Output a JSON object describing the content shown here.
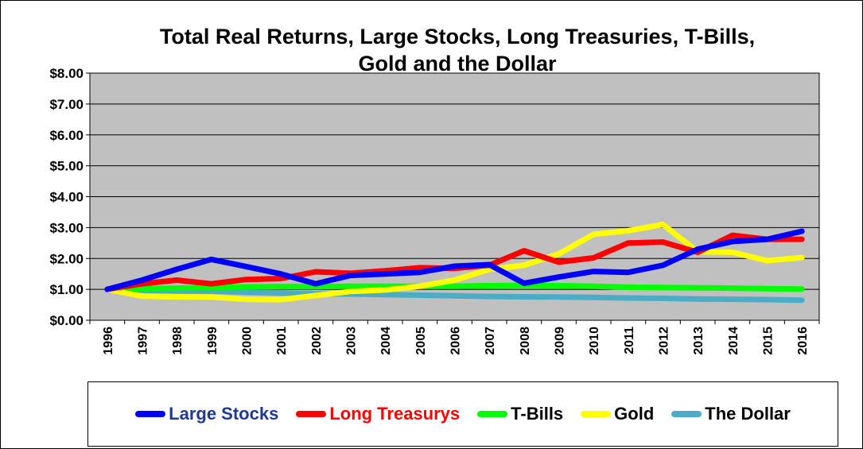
{
  "chart_data": {
    "type": "line",
    "title_lines": [
      "Total Real Returns, Large Stocks, Long Treasuries, T-Bills,",
      "Gold and the Dollar"
    ],
    "xlabel": "",
    "ylabel": "",
    "ylim": [
      0,
      8
    ],
    "yticks": [
      "$0.00",
      "$1.00",
      "$2.00",
      "$3.00",
      "$4.00",
      "$5.00",
      "$6.00",
      "$7.00",
      "$8.00"
    ],
    "grid": "horizontal",
    "legend_position": "bottom",
    "plot_background": "#c0c0c0",
    "categories": [
      "1996",
      "1997",
      "1998",
      "1999",
      "2000",
      "2001",
      "2002",
      "2003",
      "2004",
      "2005",
      "2006",
      "2007",
      "2008",
      "2009",
      "2010",
      "2011",
      "2012",
      "2013",
      "2014",
      "2015",
      "2016"
    ],
    "series": [
      {
        "name": "Large Stocks",
        "color": "#0000ff",
        "label_color": "#1f3a93",
        "values": [
          1.0,
          1.3,
          1.65,
          1.97,
          1.74,
          1.5,
          1.18,
          1.45,
          1.5,
          1.55,
          1.75,
          1.8,
          1.2,
          1.4,
          1.58,
          1.55,
          1.78,
          2.3,
          2.55,
          2.62,
          2.88
        ]
      },
      {
        "name": "Long Treasurys",
        "color": "#ff0000",
        "label_color": "#ff0000",
        "values": [
          1.0,
          1.18,
          1.3,
          1.18,
          1.32,
          1.35,
          1.57,
          1.52,
          1.6,
          1.7,
          1.68,
          1.78,
          2.25,
          1.88,
          2.02,
          2.5,
          2.53,
          2.2,
          2.75,
          2.62,
          2.62
        ]
      },
      {
        "name": "T-Bills",
        "color": "#00ff00",
        "label_color": "#000000",
        "values": [
          1.0,
          1.02,
          1.04,
          1.06,
          1.08,
          1.09,
          1.09,
          1.1,
          1.1,
          1.1,
          1.1,
          1.12,
          1.13,
          1.12,
          1.1,
          1.07,
          1.06,
          1.05,
          1.04,
          1.02,
          1.01
        ]
      },
      {
        "name": "Gold",
        "color": "#ffff00",
        "label_color": "#000000",
        "values": [
          1.0,
          0.78,
          0.76,
          0.75,
          0.68,
          0.67,
          0.8,
          0.93,
          0.98,
          1.1,
          1.3,
          1.65,
          1.78,
          2.15,
          2.78,
          2.9,
          3.1,
          2.22,
          2.2,
          1.93,
          2.03
        ]
      },
      {
        "name": "The Dollar",
        "color": "#4bacc6",
        "label_color": "#000000",
        "values": [
          1.0,
          0.97,
          0.95,
          0.94,
          0.91,
          0.88,
          0.86,
          0.85,
          0.83,
          0.81,
          0.79,
          0.77,
          0.76,
          0.75,
          0.74,
          0.72,
          0.71,
          0.69,
          0.68,
          0.67,
          0.65
        ]
      }
    ]
  }
}
